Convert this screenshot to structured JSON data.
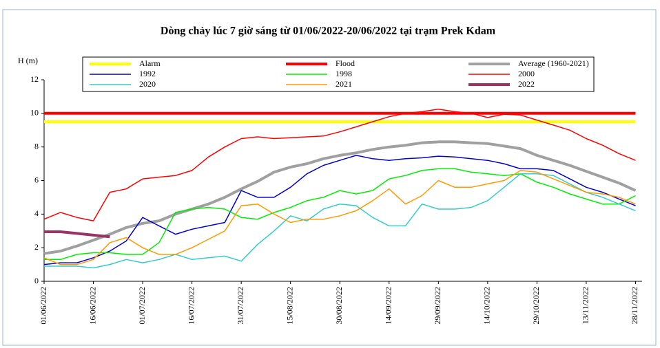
{
  "chart_data": {
    "type": "line",
    "title": "Dòng chảy lúc 7 giờ sáng từ 01/06/2022-20/06/2022 tại trạm Prek Kdam",
    "y_label": "H (m)",
    "x": [
      "01/06/2022",
      "06/06/2022",
      "11/06/2022",
      "16/06/2022",
      "21/06/2022",
      "26/06/2022",
      "01/07/2022",
      "06/07/2022",
      "11/07/2022",
      "16/07/2022",
      "21/07/2022",
      "26/07/2022",
      "31/07/2022",
      "05/08/2022",
      "10/08/2022",
      "15/08/2022",
      "20/08/2022",
      "25/08/2022",
      "30/08/2022",
      "04/09/2022",
      "09/09/2022",
      "14/09/2022",
      "19/09/2022",
      "24/09/2022",
      "29/09/2022",
      "04/10/2022",
      "09/10/2022",
      "14/10/2022",
      "19/10/2022",
      "24/10/2022",
      "29/10/2022",
      "03/11/2022",
      "08/11/2022",
      "13/11/2022",
      "18/11/2022",
      "23/11/2022",
      "28/11/2022"
    ],
    "xlim": [
      "01/06/2022",
      "30/11/2022"
    ],
    "xticks": [
      "01/06/2022",
      "16/06/2022",
      "01/07/2022",
      "16/07/2022",
      "31/07/2022",
      "15/08/2022",
      "30/08/2022",
      "14/09/2022",
      "29/09/2022",
      "14/10/2022",
      "29/10/2022",
      "13/11/2022",
      "28/11/2022"
    ],
    "ylim": [
      0,
      12
    ],
    "yticks": [
      0,
      2,
      4,
      6,
      8,
      10,
      12
    ],
    "series": [
      {
        "name": "Alarm",
        "color": "#ffff00",
        "line_width": 4,
        "values": [
          9.5,
          9.5,
          9.5,
          9.5,
          9.5,
          9.5,
          9.5,
          9.5,
          9.5,
          9.5,
          9.5,
          9.5,
          9.5,
          9.5,
          9.5,
          9.5,
          9.5,
          9.5,
          9.5,
          9.5,
          9.5,
          9.5,
          9.5,
          9.5,
          9.5,
          9.5,
          9.5,
          9.5,
          9.5,
          9.5,
          9.5,
          9.5,
          9.5,
          9.5,
          9.5,
          9.5,
          9.5
        ]
      },
      {
        "name": "Flood",
        "color": "#ff0000",
        "line_width": 4,
        "values": [
          10,
          10,
          10,
          10,
          10,
          10,
          10,
          10,
          10,
          10,
          10,
          10,
          10,
          10,
          10,
          10,
          10,
          10,
          10,
          10,
          10,
          10,
          10,
          10,
          10,
          10,
          10,
          10,
          10,
          10,
          10,
          10,
          10,
          10,
          10,
          10,
          10
        ]
      },
      {
        "name": "Average (1960-2021)",
        "color": "#a0a0a0",
        "line_width": 4,
        "values": [
          1.65,
          1.8,
          2.1,
          2.45,
          2.8,
          3.2,
          3.45,
          3.6,
          4.0,
          4.3,
          4.6,
          5.0,
          5.5,
          5.95,
          6.5,
          6.8,
          7.0,
          7.3,
          7.5,
          7.65,
          7.85,
          8.0,
          8.1,
          8.25,
          8.3,
          8.3,
          8.25,
          8.2,
          8.05,
          7.9,
          7.5,
          7.2,
          6.9,
          6.55,
          6.2,
          5.85,
          5.4
        ]
      },
      {
        "name": "1992",
        "color": "#0000cc",
        "line_width": 1.5,
        "values": [
          1.0,
          1.1,
          1.1,
          1.4,
          1.8,
          2.4,
          3.8,
          3.3,
          2.8,
          3.1,
          3.3,
          3.5,
          5.4,
          5.0,
          5.0,
          5.6,
          6.4,
          6.9,
          7.2,
          7.5,
          7.3,
          7.2,
          7.3,
          7.35,
          7.45,
          7.4,
          7.3,
          7.2,
          7.0,
          6.7,
          6.7,
          6.6,
          6.1,
          5.6,
          5.3,
          4.9,
          4.5
        ]
      },
      {
        "name": "1998",
        "color": "#00ee00",
        "line_width": 1.5,
        "values": [
          1.3,
          1.3,
          1.6,
          1.7,
          1.7,
          1.6,
          1.6,
          2.3,
          4.1,
          4.3,
          4.4,
          4.3,
          3.8,
          3.7,
          4.1,
          4.4,
          4.8,
          5.0,
          5.4,
          5.2,
          5.4,
          6.1,
          6.3,
          6.6,
          6.7,
          6.7,
          6.5,
          6.4,
          6.3,
          6.4,
          5.9,
          5.6,
          5.2,
          4.9,
          4.6,
          4.6,
          5.1
        ]
      },
      {
        "name": "2000",
        "color": "#ff0000",
        "line_width": 1.5,
        "values": [
          3.7,
          4.1,
          3.8,
          3.6,
          5.3,
          5.5,
          6.1,
          6.2,
          6.3,
          6.6,
          7.4,
          8.0,
          8.5,
          8.6,
          8.5,
          8.55,
          8.6,
          8.65,
          8.9,
          9.2,
          9.5,
          9.8,
          10.0,
          10.1,
          10.25,
          10.1,
          10.0,
          9.75,
          9.95,
          9.9,
          9.6,
          9.3,
          9.0,
          8.5,
          8.1,
          7.6,
          7.2
        ]
      },
      {
        "name": "2020",
        "color": "#33cccc",
        "line_width": 1.5,
        "values": [
          0.9,
          0.9,
          0.9,
          0.8,
          1.0,
          1.3,
          1.1,
          1.3,
          1.6,
          1.3,
          1.4,
          1.5,
          1.2,
          2.2,
          3.0,
          3.9,
          3.6,
          4.3,
          4.6,
          4.5,
          3.8,
          3.3,
          3.3,
          4.6,
          4.3,
          4.3,
          4.4,
          4.8,
          5.6,
          6.4,
          6.4,
          6.3,
          5.8,
          5.3,
          5.0,
          4.6,
          4.2
        ]
      },
      {
        "name": "2021",
        "color": "#ff9900",
        "line_width": 1.5,
        "values": [
          1.4,
          1.0,
          1.0,
          1.3,
          2.3,
          2.6,
          2.0,
          1.6,
          1.6,
          2.0,
          2.5,
          3.0,
          4.5,
          4.6,
          4.0,
          3.5,
          3.7,
          3.7,
          3.9,
          4.2,
          4.8,
          5.5,
          4.6,
          5.1,
          6.0,
          5.6,
          5.6,
          5.8,
          6.0,
          6.6,
          6.5,
          6.1,
          5.7,
          5.3,
          5.2,
          5.0,
          4.6
        ]
      },
      {
        "name": "2022",
        "color": "#993366",
        "line_width": 4,
        "values": [
          2.95,
          2.95,
          2.85,
          2.75,
          2.65,
          null,
          null,
          null,
          null,
          null,
          null,
          null,
          null,
          null,
          null,
          null,
          null,
          null,
          null,
          null,
          null,
          null,
          null,
          null,
          null,
          null,
          null,
          null,
          null,
          null,
          null,
          null,
          null,
          null,
          null,
          null,
          null
        ]
      }
    ]
  }
}
